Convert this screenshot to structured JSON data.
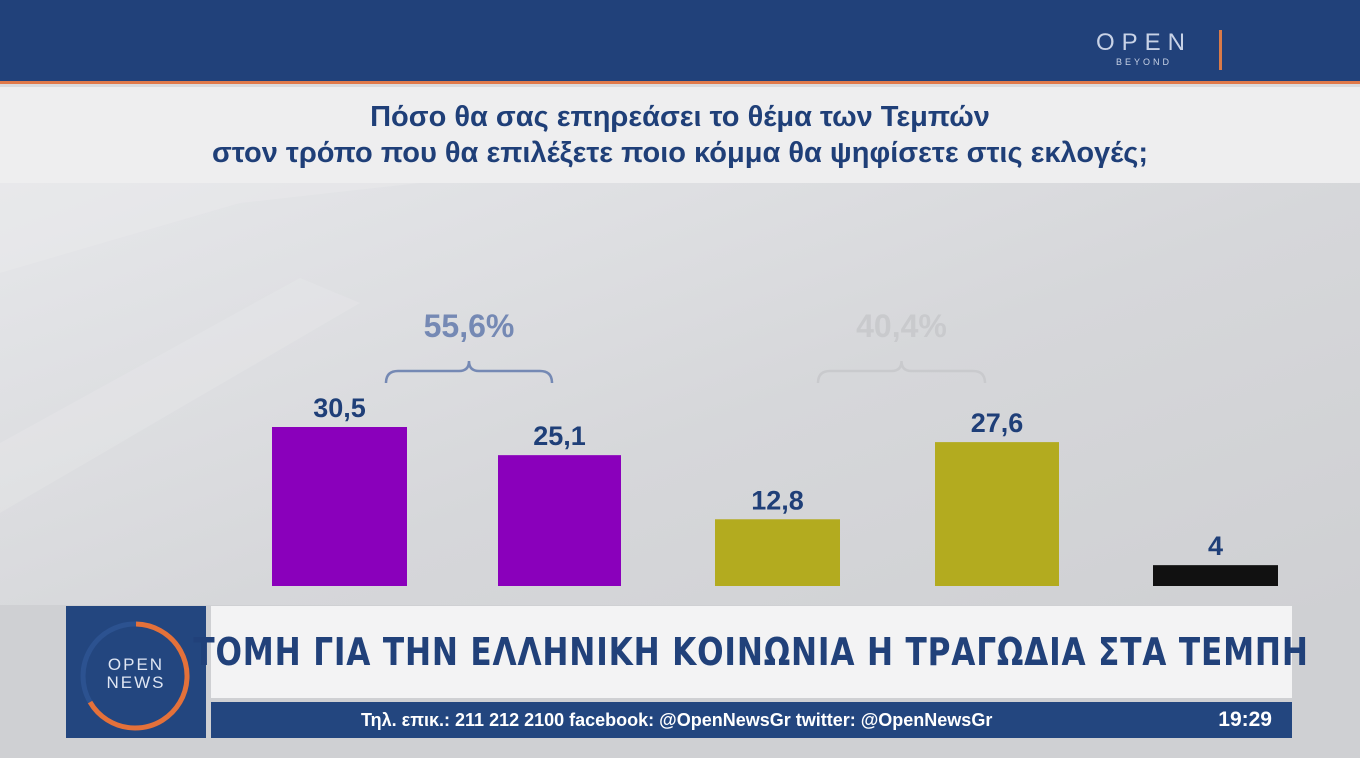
{
  "channel": {
    "logo_top": "OPEN",
    "logo_top_sub": "BEYOND",
    "logo_news_1": "OPEN",
    "logo_news_2": "NEWS"
  },
  "question": {
    "line1": "Πόσο θα σας επηρεάσει το θέμα των Τεμπών",
    "line2": "στον τρόπο που θα επιλέξετε ποιο κόμμα θα ψηφίσετε στις εκλογές;"
  },
  "chart_data": {
    "type": "bar",
    "title": "Πόσο θα σας επηρεάσει το θέμα των Τεμπών στον τρόπο που θα επιλέξετε ποιο κόμμα θα ψηφίσετε στις εκλογές;",
    "categories": [
      "",
      "",
      "",
      "",
      ""
    ],
    "values": [
      30.5,
      25.1,
      12.8,
      27.6,
      4
    ],
    "value_labels": [
      "30,5",
      "25,1",
      "12,8",
      "27,6",
      "4"
    ],
    "colors": [
      "#8a00bb",
      "#8a00bb",
      "#b3ab1f",
      "#b3ab1f",
      "#111111"
    ],
    "group_totals": [
      {
        "label": "55,6%",
        "bars": [
          0,
          1
        ],
        "color": "#7589b4"
      },
      {
        "label": "40,4%",
        "bars": [
          2,
          3
        ],
        "color": "#c9cacd"
      }
    ],
    "ylim": [
      0,
      30.5
    ],
    "grid": false,
    "legend": "none"
  },
  "banner": {
    "headline": "ΤΟΜΗ ΓΙΑ ΤΗΝ ΕΛΛΗΝΙΚΗ ΚΟΙΝΩΝΙΑ Η ΤΡΑΓΩΔΙΑ ΣΤΑ ΤΕΜΠΗ",
    "contact": "Τηλ. επικ.: 211 212 2100 facebook: @OpenNewsGr twitter: @OpenNewsGr",
    "time": "19:29"
  },
  "icons": {
    "logo_mark": "open-logo-icon",
    "news_ring": "open-news-ring-icon"
  }
}
